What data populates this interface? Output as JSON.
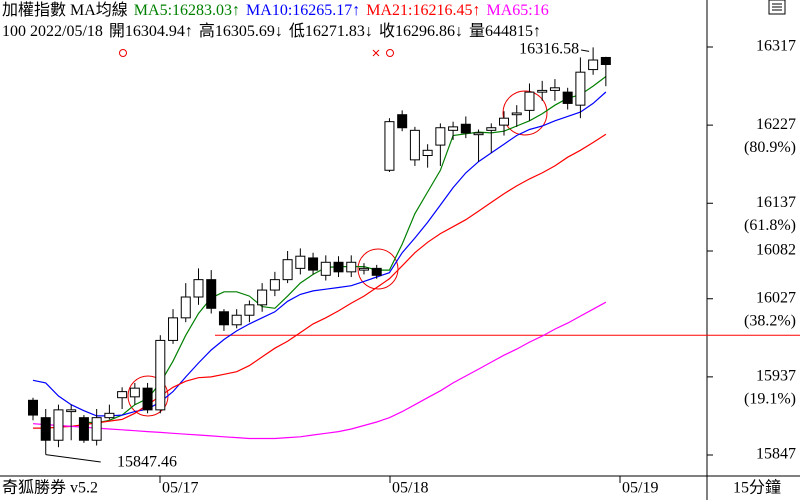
{
  "chart_data": {
    "type": "candlestick",
    "header_line1": [
      {
        "text": "加權指數 MA均線",
        "color": "#000000"
      },
      {
        "text": "MA5:16283.03↑",
        "color": "#008000"
      },
      {
        "text": "MA10:16265.17↑",
        "color": "#0000ff"
      },
      {
        "text": "MA21:16216.45↑",
        "color": "#ff0000"
      },
      {
        "text": "MA65:16",
        "color": "#ff00ff"
      }
    ],
    "header_line2": [
      "100 2022/05/18",
      "開16304.94↑",
      "高16305.69↓",
      "低16271.83↓",
      "收16296.86↓",
      "量644815↑"
    ],
    "open": [
      15910,
      15890,
      15864,
      15897,
      15890,
      15864,
      15890,
      15913,
      15914,
      15924,
      15899,
      15979,
      16005,
      16029,
      16049,
      16012,
      15997,
      16008,
      16020,
      16037,
      16049,
      16062,
      16074,
      16054,
      16069,
      16058,
      16060,
      16062,
      16175,
      16239,
      16187,
      16192,
      16204,
      16221,
      16228,
      16216,
      16221,
      16227,
      16239,
      16244,
      16265,
      16267,
      16265,
      16250,
      16291,
      16304.94
    ],
    "high": [
      15913,
      15900,
      15905,
      15905,
      15893,
      15900,
      15905,
      15925,
      15930,
      15930,
      15985,
      16015,
      16045,
      16062,
      16060,
      16015,
      16015,
      16025,
      16045,
      16058,
      16082,
      16085,
      16080,
      16077,
      16076,
      16077,
      16068,
      16066,
      16235,
      16244,
      16225,
      16205,
      16229,
      16231,
      16237,
      16222,
      16229,
      16243,
      16250,
      16275,
      16278,
      16280,
      16270,
      16305,
      16316.58,
      16305.69
    ],
    "low": [
      15887,
      15847.46,
      15856,
      15864,
      15861,
      15858,
      15888,
      15900,
      15905,
      15895,
      15895,
      15975,
      16000,
      16020,
      16010,
      15990,
      15993,
      16000,
      16012,
      16030,
      16045,
      16055,
      16055,
      16048,
      16052,
      16052,
      16055,
      16050,
      16173,
      16220,
      16180,
      16178,
      16180,
      16210,
      16212,
      16185,
      16195,
      16215,
      16225,
      16232,
      16255,
      16255,
      16245,
      16235,
      16285,
      16271.83
    ],
    "close": [
      15893,
      15864,
      15899,
      15899,
      15864,
      15890,
      15895,
      15920,
      15924,
      15899,
      15979,
      16005,
      16029,
      16049,
      16016,
      15997,
      16008,
      16020,
      16037,
      16049,
      16072,
      16076,
      16060,
      16069,
      16058,
      16069,
      16062,
      16054,
      16231,
      16224,
      16221,
      16198,
      16224,
      16225,
      16218,
      16218,
      16224,
      16235,
      16241,
      16265,
      16267,
      16270,
      16252,
      16288,
      16302,
      16296.86
    ],
    "series": [
      {
        "name": "MA5",
        "color": "#008000",
        "values": [
          null,
          null,
          null,
          null,
          15885,
          15884,
          15887,
          15893,
          15905,
          15912,
          15930,
          15955,
          15985,
          16010,
          16028,
          16035,
          16035,
          16030,
          16018,
          16016,
          16030,
          16045,
          16055,
          16063,
          16064,
          16064,
          16064,
          16060,
          16060,
          16090,
          16125,
          16150,
          16175,
          16215,
          16217,
          16219,
          16218,
          16220,
          16226,
          16232,
          16240,
          16250,
          16258,
          16262,
          16272,
          16283.03
        ]
      },
      {
        "name": "MA10",
        "color": "#0000ff",
        "values": [
          15933,
          15930,
          15915,
          15905,
          15898,
          15892,
          15892,
          15893,
          15897,
          15900,
          15908,
          15920,
          15937,
          15953,
          15968,
          15980,
          15990,
          15998,
          16005,
          16012,
          16024,
          16032,
          16036,
          16038,
          16040,
          16042,
          16047,
          16052,
          16057,
          16080,
          16097,
          16115,
          16135,
          16155,
          16172,
          16185,
          16195,
          16205,
          16215,
          16222,
          16226,
          16232,
          16237,
          16242,
          16252,
          16265.17
        ]
      },
      {
        "name": "MA21",
        "color": "#ff0000",
        "values": [
          15878,
          15878,
          15879,
          15880,
          15882,
          15884,
          15886,
          15888,
          15895,
          15905,
          15915,
          15925,
          15932,
          15936,
          15937,
          15940,
          15943,
          15950,
          15960,
          15970,
          15978,
          15988,
          15998,
          16005,
          16013,
          16022,
          16030,
          16040,
          16050,
          16065,
          16080,
          16092,
          16102,
          16110,
          16118,
          16128,
          16138,
          16148,
          16157,
          16165,
          16172,
          16180,
          16190,
          16198,
          16207,
          16216.45
        ]
      },
      {
        "name": "MA65",
        "color": "#ff00ff",
        "values": [
          15883,
          15882,
          15881,
          15880,
          15879,
          15878,
          15877,
          15876,
          15875,
          15874,
          15873,
          15872,
          15871,
          15870,
          15869,
          15868,
          15867,
          15866,
          15866,
          15866,
          15867,
          15868,
          15870,
          15872,
          15874,
          15877,
          15881,
          15885,
          15890,
          15897,
          15905,
          15913,
          15921,
          15930,
          15938,
          15946,
          15954,
          15962,
          15969,
          15977,
          15984,
          15992,
          15999,
          16007,
          16015,
          16023
        ]
      }
    ],
    "ylim": [
      15847,
      16317
    ],
    "yticks": [
      16317,
      16227,
      16137,
      16082,
      16027,
      15937,
      15847
    ],
    "yaxis_notes": [
      "(80.9%)",
      "(61.8%)",
      "(38.2%)",
      "(19.1%)"
    ],
    "x_labels": [
      "05/17",
      "05/18",
      "05/19"
    ],
    "reference_line": {
      "value": 15985,
      "color": "#ff0000"
    },
    "footer_left": "奇狐勝券 v5.2",
    "footer_right": "15分鐘"
  }
}
